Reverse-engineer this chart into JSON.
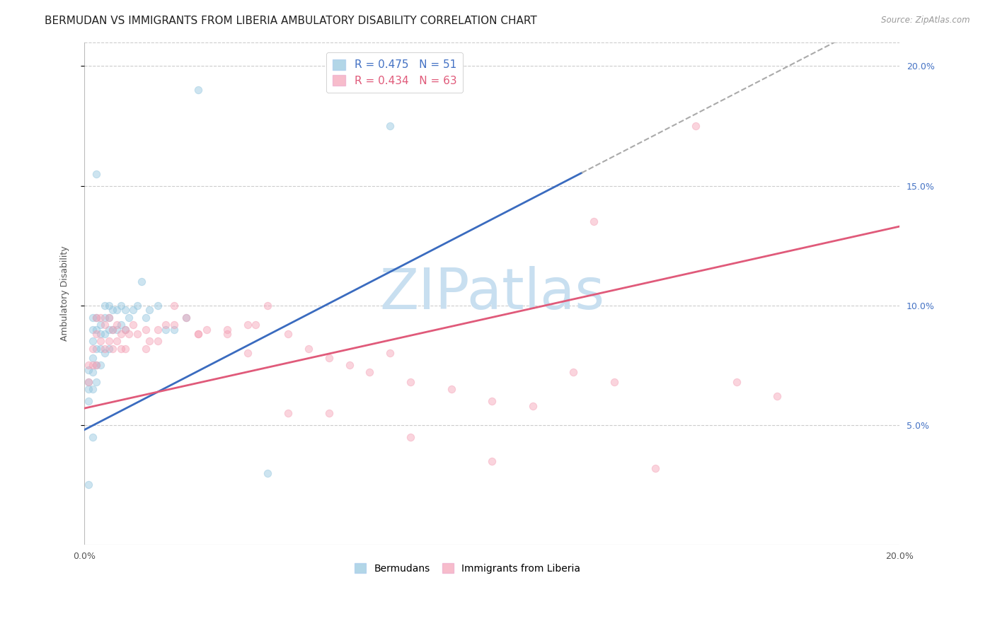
{
  "title": "BERMUDAN VS IMMIGRANTS FROM LIBERIA AMBULATORY DISABILITY CORRELATION CHART",
  "source": "Source: ZipAtlas.com",
  "ylabel": "Ambulatory Disability",
  "xmin": 0.0,
  "xmax": 0.2,
  "ymin": 0.0,
  "ymax": 0.21,
  "yticks": [
    0.05,
    0.1,
    0.15,
    0.2
  ],
  "xticks": [
    0.0,
    0.04,
    0.08,
    0.12,
    0.16,
    0.2
  ],
  "bermuda_color": "#92c5de",
  "liberia_color": "#f4a0b5",
  "blue_line_color": "#3a6bbf",
  "pink_line_color": "#e05a7a",
  "blue_line_intercept": 0.048,
  "blue_line_slope": 0.88,
  "pink_line_intercept": 0.057,
  "pink_line_slope": 0.38,
  "legend_label_blue": "Bermudans",
  "legend_label_pink": "Immigrants from Liberia",
  "legend_R_blue": "R = 0.475",
  "legend_N_blue": "N = 51",
  "legend_R_pink": "R = 0.434",
  "legend_N_pink": "N = 63",
  "watermark": "ZIPatlas",
  "watermark_color": "#c8dff0",
  "background_color": "#ffffff",
  "grid_color": "#cccccc",
  "title_fontsize": 11,
  "axis_label_fontsize": 9,
  "tick_fontsize": 9,
  "legend_fontsize": 11,
  "marker_size": 55,
  "marker_alpha": 0.45,
  "bermuda_scatter_x": [
    0.001,
    0.001,
    0.001,
    0.001,
    0.002,
    0.002,
    0.002,
    0.002,
    0.002,
    0.002,
    0.003,
    0.003,
    0.003,
    0.003,
    0.003,
    0.004,
    0.004,
    0.004,
    0.004,
    0.005,
    0.005,
    0.005,
    0.005,
    0.006,
    0.006,
    0.006,
    0.006,
    0.007,
    0.007,
    0.008,
    0.008,
    0.009,
    0.009,
    0.01,
    0.01,
    0.011,
    0.012,
    0.013,
    0.014,
    0.015,
    0.016,
    0.018,
    0.02,
    0.022,
    0.025,
    0.028,
    0.045,
    0.075,
    0.001,
    0.002,
    0.003
  ],
  "bermuda_scatter_y": [
    0.073,
    0.068,
    0.065,
    0.06,
    0.095,
    0.09,
    0.085,
    0.078,
    0.072,
    0.065,
    0.095,
    0.09,
    0.082,
    0.075,
    0.068,
    0.092,
    0.088,
    0.082,
    0.075,
    0.1,
    0.095,
    0.088,
    0.08,
    0.1,
    0.095,
    0.09,
    0.082,
    0.098,
    0.09,
    0.098,
    0.09,
    0.1,
    0.092,
    0.098,
    0.09,
    0.095,
    0.098,
    0.1,
    0.11,
    0.095,
    0.098,
    0.1,
    0.09,
    0.09,
    0.095,
    0.19,
    0.03,
    0.175,
    0.025,
    0.045,
    0.155
  ],
  "liberia_scatter_x": [
    0.001,
    0.001,
    0.002,
    0.002,
    0.003,
    0.003,
    0.003,
    0.004,
    0.004,
    0.005,
    0.005,
    0.006,
    0.006,
    0.007,
    0.007,
    0.008,
    0.008,
    0.009,
    0.009,
    0.01,
    0.01,
    0.011,
    0.012,
    0.013,
    0.015,
    0.015,
    0.016,
    0.018,
    0.02,
    0.022,
    0.025,
    0.028,
    0.03,
    0.035,
    0.04,
    0.045,
    0.05,
    0.055,
    0.06,
    0.065,
    0.07,
    0.08,
    0.09,
    0.1,
    0.11,
    0.12,
    0.13,
    0.14,
    0.15,
    0.16,
    0.17,
    0.018,
    0.022,
    0.028,
    0.035,
    0.042,
    0.05,
    0.06,
    0.08,
    0.1,
    0.04,
    0.075,
    0.125
  ],
  "liberia_scatter_y": [
    0.075,
    0.068,
    0.082,
    0.075,
    0.095,
    0.088,
    0.075,
    0.095,
    0.085,
    0.092,
    0.082,
    0.095,
    0.085,
    0.09,
    0.082,
    0.092,
    0.085,
    0.088,
    0.082,
    0.09,
    0.082,
    0.088,
    0.092,
    0.088,
    0.09,
    0.082,
    0.085,
    0.09,
    0.092,
    0.1,
    0.095,
    0.088,
    0.09,
    0.088,
    0.092,
    0.1,
    0.088,
    0.082,
    0.078,
    0.075,
    0.072,
    0.068,
    0.065,
    0.06,
    0.058,
    0.072,
    0.068,
    0.032,
    0.175,
    0.068,
    0.062,
    0.085,
    0.092,
    0.088,
    0.09,
    0.092,
    0.055,
    0.055,
    0.045,
    0.035,
    0.08,
    0.08,
    0.135
  ]
}
